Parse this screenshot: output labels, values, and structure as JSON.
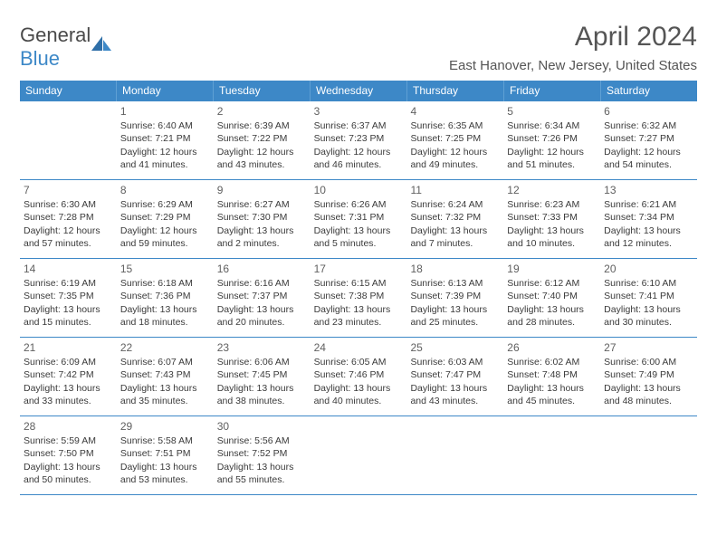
{
  "logo": {
    "text_gray": "General",
    "text_blue": "Blue"
  },
  "title": "April 2024",
  "location": "East Hanover, New Jersey, United States",
  "weekdays": [
    "Sunday",
    "Monday",
    "Tuesday",
    "Wednesday",
    "Thursday",
    "Friday",
    "Saturday"
  ],
  "colors": {
    "header_bg": "#3d88c7",
    "header_text": "#ffffff",
    "border": "#3d88c7",
    "body_text": "#3a3a3a",
    "daynum_text": "#606060",
    "logo_gray": "#4a4a4a",
    "logo_blue": "#3d88c7",
    "title_text": "#555555"
  },
  "weeks": [
    [
      null,
      {
        "n": "1",
        "sr": "Sunrise: 6:40 AM",
        "ss": "Sunset: 7:21 PM",
        "d1": "Daylight: 12 hours",
        "d2": "and 41 minutes."
      },
      {
        "n": "2",
        "sr": "Sunrise: 6:39 AM",
        "ss": "Sunset: 7:22 PM",
        "d1": "Daylight: 12 hours",
        "d2": "and 43 minutes."
      },
      {
        "n": "3",
        "sr": "Sunrise: 6:37 AM",
        "ss": "Sunset: 7:23 PM",
        "d1": "Daylight: 12 hours",
        "d2": "and 46 minutes."
      },
      {
        "n": "4",
        "sr": "Sunrise: 6:35 AM",
        "ss": "Sunset: 7:25 PM",
        "d1": "Daylight: 12 hours",
        "d2": "and 49 minutes."
      },
      {
        "n": "5",
        "sr": "Sunrise: 6:34 AM",
        "ss": "Sunset: 7:26 PM",
        "d1": "Daylight: 12 hours",
        "d2": "and 51 minutes."
      },
      {
        "n": "6",
        "sr": "Sunrise: 6:32 AM",
        "ss": "Sunset: 7:27 PM",
        "d1": "Daylight: 12 hours",
        "d2": "and 54 minutes."
      }
    ],
    [
      {
        "n": "7",
        "sr": "Sunrise: 6:30 AM",
        "ss": "Sunset: 7:28 PM",
        "d1": "Daylight: 12 hours",
        "d2": "and 57 minutes."
      },
      {
        "n": "8",
        "sr": "Sunrise: 6:29 AM",
        "ss": "Sunset: 7:29 PM",
        "d1": "Daylight: 12 hours",
        "d2": "and 59 minutes."
      },
      {
        "n": "9",
        "sr": "Sunrise: 6:27 AM",
        "ss": "Sunset: 7:30 PM",
        "d1": "Daylight: 13 hours",
        "d2": "and 2 minutes."
      },
      {
        "n": "10",
        "sr": "Sunrise: 6:26 AM",
        "ss": "Sunset: 7:31 PM",
        "d1": "Daylight: 13 hours",
        "d2": "and 5 minutes."
      },
      {
        "n": "11",
        "sr": "Sunrise: 6:24 AM",
        "ss": "Sunset: 7:32 PM",
        "d1": "Daylight: 13 hours",
        "d2": "and 7 minutes."
      },
      {
        "n": "12",
        "sr": "Sunrise: 6:23 AM",
        "ss": "Sunset: 7:33 PM",
        "d1": "Daylight: 13 hours",
        "d2": "and 10 minutes."
      },
      {
        "n": "13",
        "sr": "Sunrise: 6:21 AM",
        "ss": "Sunset: 7:34 PM",
        "d1": "Daylight: 13 hours",
        "d2": "and 12 minutes."
      }
    ],
    [
      {
        "n": "14",
        "sr": "Sunrise: 6:19 AM",
        "ss": "Sunset: 7:35 PM",
        "d1": "Daylight: 13 hours",
        "d2": "and 15 minutes."
      },
      {
        "n": "15",
        "sr": "Sunrise: 6:18 AM",
        "ss": "Sunset: 7:36 PM",
        "d1": "Daylight: 13 hours",
        "d2": "and 18 minutes."
      },
      {
        "n": "16",
        "sr": "Sunrise: 6:16 AM",
        "ss": "Sunset: 7:37 PM",
        "d1": "Daylight: 13 hours",
        "d2": "and 20 minutes."
      },
      {
        "n": "17",
        "sr": "Sunrise: 6:15 AM",
        "ss": "Sunset: 7:38 PM",
        "d1": "Daylight: 13 hours",
        "d2": "and 23 minutes."
      },
      {
        "n": "18",
        "sr": "Sunrise: 6:13 AM",
        "ss": "Sunset: 7:39 PM",
        "d1": "Daylight: 13 hours",
        "d2": "and 25 minutes."
      },
      {
        "n": "19",
        "sr": "Sunrise: 6:12 AM",
        "ss": "Sunset: 7:40 PM",
        "d1": "Daylight: 13 hours",
        "d2": "and 28 minutes."
      },
      {
        "n": "20",
        "sr": "Sunrise: 6:10 AM",
        "ss": "Sunset: 7:41 PM",
        "d1": "Daylight: 13 hours",
        "d2": "and 30 minutes."
      }
    ],
    [
      {
        "n": "21",
        "sr": "Sunrise: 6:09 AM",
        "ss": "Sunset: 7:42 PM",
        "d1": "Daylight: 13 hours",
        "d2": "and 33 minutes."
      },
      {
        "n": "22",
        "sr": "Sunrise: 6:07 AM",
        "ss": "Sunset: 7:43 PM",
        "d1": "Daylight: 13 hours",
        "d2": "and 35 minutes."
      },
      {
        "n": "23",
        "sr": "Sunrise: 6:06 AM",
        "ss": "Sunset: 7:45 PM",
        "d1": "Daylight: 13 hours",
        "d2": "and 38 minutes."
      },
      {
        "n": "24",
        "sr": "Sunrise: 6:05 AM",
        "ss": "Sunset: 7:46 PM",
        "d1": "Daylight: 13 hours",
        "d2": "and 40 minutes."
      },
      {
        "n": "25",
        "sr": "Sunrise: 6:03 AM",
        "ss": "Sunset: 7:47 PM",
        "d1": "Daylight: 13 hours",
        "d2": "and 43 minutes."
      },
      {
        "n": "26",
        "sr": "Sunrise: 6:02 AM",
        "ss": "Sunset: 7:48 PM",
        "d1": "Daylight: 13 hours",
        "d2": "and 45 minutes."
      },
      {
        "n": "27",
        "sr": "Sunrise: 6:00 AM",
        "ss": "Sunset: 7:49 PM",
        "d1": "Daylight: 13 hours",
        "d2": "and 48 minutes."
      }
    ],
    [
      {
        "n": "28",
        "sr": "Sunrise: 5:59 AM",
        "ss": "Sunset: 7:50 PM",
        "d1": "Daylight: 13 hours",
        "d2": "and 50 minutes."
      },
      {
        "n": "29",
        "sr": "Sunrise: 5:58 AM",
        "ss": "Sunset: 7:51 PM",
        "d1": "Daylight: 13 hours",
        "d2": "and 53 minutes."
      },
      {
        "n": "30",
        "sr": "Sunrise: 5:56 AM",
        "ss": "Sunset: 7:52 PM",
        "d1": "Daylight: 13 hours",
        "d2": "and 55 minutes."
      },
      null,
      null,
      null,
      null
    ]
  ]
}
